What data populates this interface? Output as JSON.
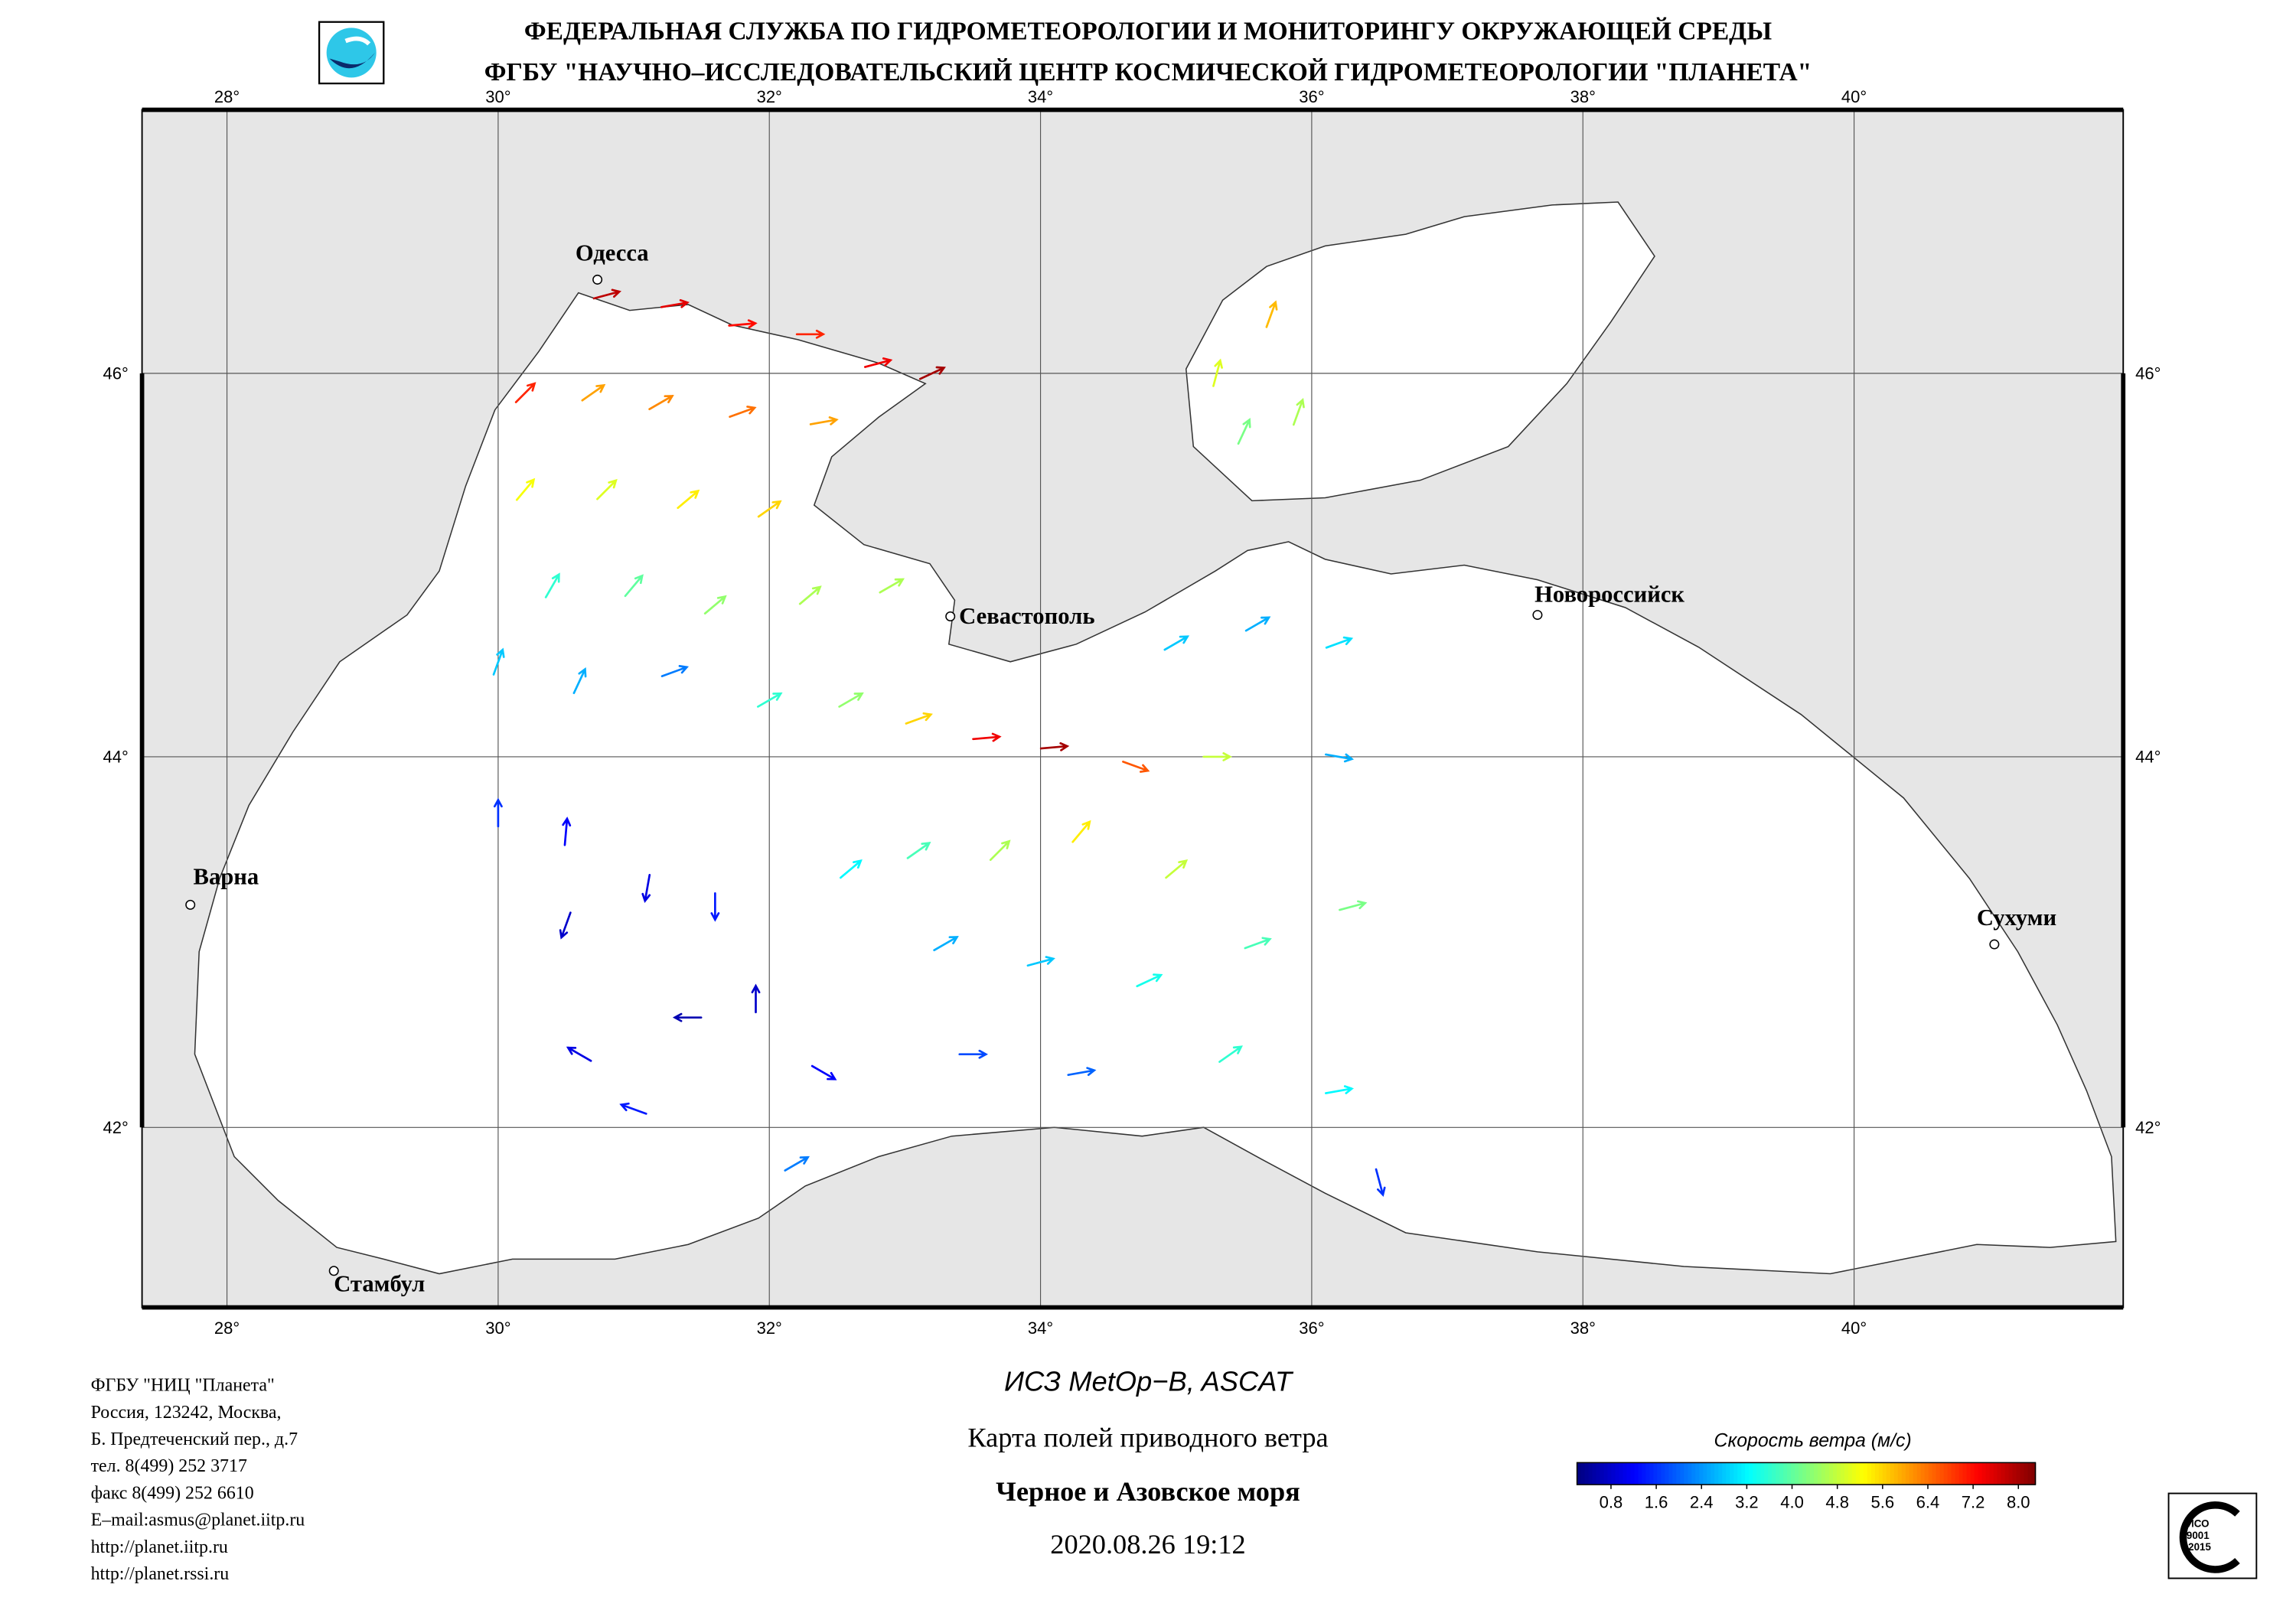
{
  "header": {
    "line1": "ФЕДЕРАЛЬНАЯ СЛУЖБА ПО ГИДРОМЕТЕОРОЛОГИИ И МОНИТОРИНГУ ОКРУЖАЮЩЕЙ СРЕДЫ",
    "line2": "ФГБУ \"НАУЧНО–ИССЛЕДОВАТЕЛЬСКИЙ ЦЕНТР КОСМИЧЕСКОЙ ГИДРОМЕТЕОРОЛОГИИ \"ПЛАНЕТА\""
  },
  "map": {
    "lon_ticks": [
      {
        "value": 28,
        "label": "28°"
      },
      {
        "value": 30,
        "label": "30°"
      },
      {
        "value": 32,
        "label": "32°"
      },
      {
        "value": 34,
        "label": "34°"
      },
      {
        "value": 36,
        "label": "36°"
      },
      {
        "value": 38,
        "label": "38°"
      },
      {
        "value": 40,
        "label": "40°"
      }
    ],
    "lat_ticks": [
      {
        "value": 42,
        "label": "42°"
      },
      {
        "value": 44,
        "label": "44°"
      },
      {
        "value": 46,
        "label": "46°"
      }
    ],
    "cities": [
      "Одесса",
      "Севастополь",
      "Новороссийск",
      "Варна",
      "Сухуми",
      "Стамбул"
    ],
    "wind": {
      "lon": [
        30.8,
        31.3,
        31.8,
        32.3,
        32.8,
        33.2,
        30.2,
        30.7,
        31.2,
        31.8,
        32.4,
        30.2,
        30.8,
        31.4,
        32.0,
        30.4,
        31.0,
        31.6,
        32.3,
        32.9,
        30.0,
        30.6,
        31.3,
        32.0,
        32.6,
        33.1,
        33.6,
        34.1,
        34.7,
        35.3,
        35.0,
        35.6,
        36.2,
        36.2,
        30.0,
        30.5,
        30.5,
        31.1,
        31.6,
        31.4,
        31.9,
        30.6,
        31.0,
        32.4,
        32.6,
        33.1,
        33.7,
        34.3,
        35.0,
        33.3,
        34.0,
        34.8,
        35.6,
        36.3,
        35.4,
        36.2,
        33.5,
        34.3,
        32.2,
        36.5,
        35.3,
        35.7,
        35.5,
        35.9
      ],
      "lat": [
        46.4,
        46.35,
        46.25,
        46.2,
        46.05,
        46.0,
        45.9,
        45.9,
        45.85,
        45.8,
        45.75,
        45.4,
        45.4,
        45.35,
        45.3,
        44.9,
        44.9,
        44.8,
        44.85,
        44.9,
        44.5,
        44.4,
        44.45,
        44.3,
        44.3,
        44.2,
        44.1,
        44.05,
        43.95,
        44.0,
        44.6,
        44.7,
        44.6,
        44.0,
        43.7,
        43.6,
        43.1,
        43.3,
        43.2,
        42.6,
        42.7,
        42.4,
        42.1,
        42.3,
        43.4,
        43.5,
        43.5,
        43.6,
        43.4,
        43.0,
        42.9,
        42.8,
        43.0,
        43.2,
        42.4,
        42.2,
        42.4,
        42.3,
        41.8,
        41.7,
        46.0,
        46.3,
        45.7,
        45.8
      ],
      "speed": [
        7.8,
        7.5,
        7.2,
        7.0,
        7.4,
        8.0,
        7.0,
        6.0,
        6.2,
        6.4,
        6.0,
        5.2,
        5.0,
        5.4,
        5.6,
        3.6,
        4.0,
        4.4,
        4.6,
        4.6,
        2.8,
        2.6,
        2.2,
        3.6,
        4.4,
        5.6,
        7.4,
        8.0,
        6.6,
        4.8,
        2.8,
        2.6,
        3.0,
        2.6,
        1.6,
        1.2,
        0.8,
        1.0,
        1.4,
        0.6,
        0.8,
        1.0,
        1.4,
        1.2,
        3.2,
        3.8,
        4.6,
        5.4,
        4.8,
        2.6,
        2.8,
        3.4,
        3.8,
        4.2,
        3.6,
        3.2,
        1.8,
        2.0,
        2.2,
        1.6,
        5.0,
        5.8,
        4.2,
        4.6
      ],
      "direction": [
        75,
        80,
        85,
        90,
        75,
        65,
        45,
        55,
        60,
        70,
        80,
        40,
        45,
        50,
        55,
        30,
        40,
        50,
        50,
        60,
        20,
        25,
        70,
        60,
        60,
        70,
        85,
        85,
        110,
        90,
        60,
        60,
        70,
        100,
        0,
        5,
        200,
        190,
        180,
        270,
        0,
        300,
        290,
        120,
        50,
        55,
        45,
        40,
        50,
        60,
        75,
        65,
        70,
        75,
        55,
        80,
        90,
        80,
        60,
        165,
        15,
        20,
        25,
        20
      ]
    }
  },
  "colorbar": {
    "title": "Скорость ветра (м/с)",
    "range": [
      0.2,
      8.3
    ],
    "ticks": [
      0.8,
      1.6,
      2.4,
      3.2,
      {
        "value": 4,
        "label": "4.0"
      },
      4.8,
      5.6,
      6.4,
      7.2,
      {
        "value": 8,
        "label": "8.0"
      }
    ]
  },
  "footer": {
    "satellite": "ИСЗ MetOp−B, ASCAT",
    "product": "Карта полей приводного ветра",
    "region": "Черное и Азовское моря",
    "datetime": "2020.08.26 19:12",
    "contacts": [
      "ФГБУ \"НИЦ \"Планета\"",
      "Россия, 123242, Москва,",
      "Б. Предтеченский пер., д.7",
      "тел. 8(499) 252 3717",
      "факс 8(499) 252 6610",
      "E–mail:asmus@planet.iitp.ru",
      "http://planet.iitp.ru",
      "http://planet.rssi.ru"
    ],
    "certificate": [
      "ИСО",
      "9001",
      "-2015"
    ]
  }
}
